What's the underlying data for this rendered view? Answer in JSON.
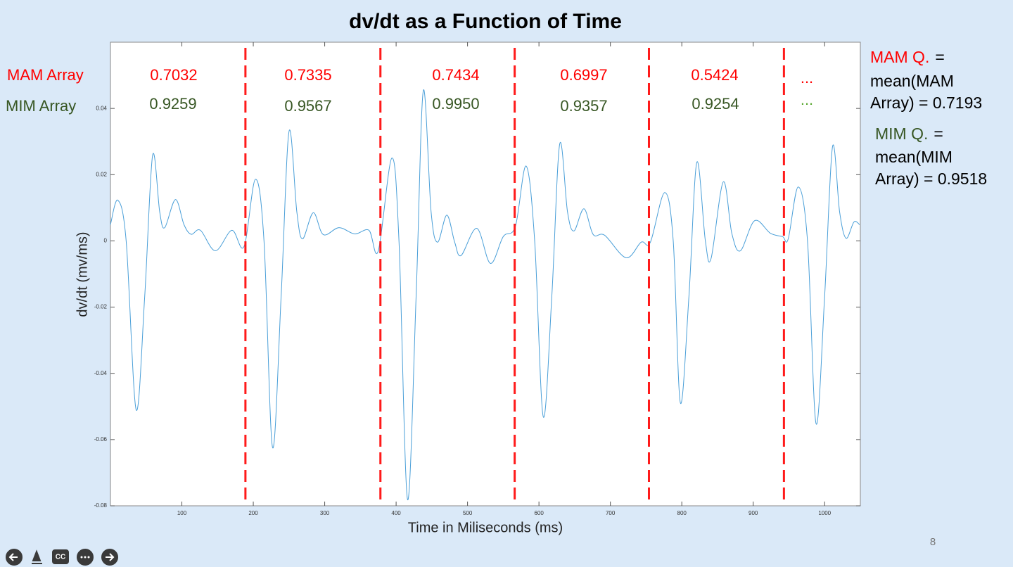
{
  "chart_data": {
    "type": "line",
    "title": "dv/dt as a Function of Time",
    "xlabel": "Time in Miliseconds (ms)",
    "ylabel": "dv/dt (mv/ms)",
    "x": [
      0,
      10.3,
      22,
      36,
      48,
      59,
      69,
      76,
      91,
      103,
      113,
      126,
      147,
      170,
      187,
      203,
      215,
      227,
      239,
      250,
      261,
      269,
      284,
      298,
      320,
      342,
      362,
      375,
      394,
      404,
      416,
      428,
      438,
      449,
      458,
      471,
      482,
      491,
      513,
      532,
      550,
      567,
      582,
      594,
      606,
      618,
      629,
      640,
      649,
      663,
      676,
      692,
      722,
      743,
      756,
      776,
      788,
      798,
      810,
      821,
      833,
      841,
      858,
      870,
      882,
      902,
      924,
      941,
      949,
      963,
      976,
      988,
      1000,
      1011,
      1021,
      1030,
      1041,
      1049
    ],
    "series": [
      {
        "color": "#4a9fd8",
        "values": [
          0.0049,
          0.0123,
          0,
          -0.051,
          -0.0167,
          0.0258,
          0.0087,
          0.004,
          0.0125,
          0.0049,
          0.002,
          0.0032,
          -0.003,
          0.0032,
          -0.0017,
          0.0186,
          0,
          -0.0624,
          -0.0167,
          0.033,
          0.0087,
          0.0006,
          0.0085,
          0.0019,
          0.004,
          0.0021,
          0.0032,
          -0.003,
          0.025,
          0,
          -0.0781,
          -0.0167,
          0.0453,
          0.0087,
          -0.0004,
          0.0078,
          -0.0004,
          -0.0044,
          0.0038,
          -0.0068,
          0.0013,
          0.0044,
          0.0226,
          0,
          -0.0531,
          -0.0167,
          0.0292,
          0.0087,
          0.003,
          0.0097,
          0.0019,
          0.0017,
          -0.0051,
          -0.0004,
          -0.0004,
          0.0146,
          0,
          -0.0489,
          -0.0167,
          0.0237,
          0,
          -0.0053,
          0.0178,
          0.0023,
          -0.003,
          0.0061,
          0.0023,
          0.0013,
          0.0006,
          0.0163,
          0,
          -0.0552,
          -0.0167,
          0.0284,
          0.0087,
          0.0008,
          0.0057,
          0.0049
        ]
      }
    ],
    "xlim": [
      0,
      1050
    ],
    "ylim": [
      -0.08,
      0.06
    ],
    "xticks": [
      100,
      200,
      300,
      400,
      500,
      600,
      700,
      800,
      900,
      1000
    ],
    "yticks": [
      -0.08,
      -0.06,
      -0.04,
      -0.02,
      0,
      0.02,
      0.04
    ],
    "dividers": [
      189,
      378,
      566,
      754,
      943
    ],
    "divider_color": "#ff1a1a",
    "mam_label": "MAM Array",
    "mim_label": "MIM Array",
    "mam_values": [
      "0.7032",
      "0.7335",
      "0.7434",
      "0.6997",
      "0.5424",
      "..."
    ],
    "mim_values": [
      "0.9259",
      "0.9567",
      "0.9950",
      "0.9357",
      "0.9254",
      "..."
    ]
  },
  "notes": {
    "mam": {
      "term": "MAM Q.",
      "eq": "=",
      "line2": "mean(MAM",
      "line3": "Array) = 0.7193"
    },
    "mim": {
      "term": "MIM Q.",
      "eq": "=",
      "line2": "mean(MIM",
      "line3": "Array) = 0.9518"
    }
  },
  "slide_number": "8"
}
